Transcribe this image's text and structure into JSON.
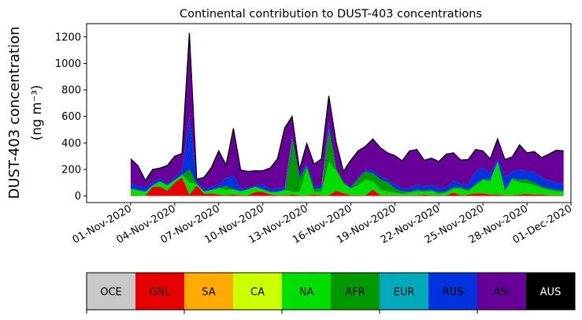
{
  "chart_data": {
    "type": "area",
    "stacked": true,
    "title": "Continental contribution to DUST-403 concentrations",
    "ylabel_line1": "DUST-403 concentration",
    "ylabel_line2": "(ng m⁻³)",
    "ylim": [
      -50,
      1300
    ],
    "yticks": [
      0,
      200,
      400,
      600,
      800,
      1000,
      1200
    ],
    "xlim": [
      "2020-10-29",
      "2020-12-01"
    ],
    "xticks": [
      "01-Nov-2020",
      "04-Nov-2020",
      "07-Nov-2020",
      "10-Nov-2020",
      "13-Nov-2020",
      "16-Nov-2020",
      "19-Nov-2020",
      "22-Nov-2020",
      "25-Nov-2020",
      "28-Nov-2020",
      "01-Dec-2020"
    ],
    "grid": false,
    "x": [
      "2020-11-01",
      "2020-11-01 12:00",
      "2020-11-02",
      "2020-11-02 12:00",
      "2020-11-03",
      "2020-11-03 12:00",
      "2020-11-04",
      "2020-11-04 12:00",
      "2020-11-05",
      "2020-11-05 12:00",
      "2020-11-06",
      "2020-11-06 12:00",
      "2020-11-07",
      "2020-11-07 12:00",
      "2020-11-08",
      "2020-11-08 12:00",
      "2020-11-09",
      "2020-11-09 12:00",
      "2020-11-10",
      "2020-11-10 12:00",
      "2020-11-11",
      "2020-11-11 12:00",
      "2020-11-12",
      "2020-11-12 12:00",
      "2020-11-13",
      "2020-11-13 12:00",
      "2020-11-14",
      "2020-11-14 12:00",
      "2020-11-15",
      "2020-11-15 12:00",
      "2020-11-16",
      "2020-11-16 12:00",
      "2020-11-17",
      "2020-11-17 12:00",
      "2020-11-18",
      "2020-11-18 12:00",
      "2020-11-19",
      "2020-11-19 12:00",
      "2020-11-20",
      "2020-11-20 12:00",
      "2020-11-21",
      "2020-11-21 12:00",
      "2020-11-22",
      "2020-11-22 12:00",
      "2020-11-23",
      "2020-11-23 12:00",
      "2020-11-24",
      "2020-11-24 12:00",
      "2020-11-25",
      "2020-11-25 12:00",
      "2020-11-26",
      "2020-11-26 12:00",
      "2020-11-27",
      "2020-11-27 12:00",
      "2020-11-28",
      "2020-11-28 12:00",
      "2020-11-29",
      "2020-11-29 12:00",
      "2020-11-30",
      "2020-11-30 12:00"
    ],
    "series": [
      {
        "name": "OCE",
        "color": "#c8c8c8",
        "values": [
          0,
          0,
          0,
          0,
          0,
          0,
          0,
          0,
          0,
          0,
          0,
          0,
          0,
          0,
          0,
          0,
          0,
          0,
          0,
          0,
          0,
          0,
          0,
          0,
          0,
          0,
          0,
          0,
          0,
          0,
          0,
          0,
          0,
          0,
          0,
          0,
          0,
          0,
          0,
          0,
          0,
          0,
          0,
          0,
          0,
          0,
          0,
          0,
          0,
          0,
          0,
          0,
          0,
          0,
          0,
          0,
          0,
          0,
          0,
          0
        ]
      },
      {
        "name": "GNL",
        "color": "#e60000",
        "values": [
          5,
          3,
          2,
          70,
          70,
          40,
          100,
          140,
          10,
          80,
          15,
          20,
          10,
          5,
          10,
          5,
          5,
          30,
          30,
          10,
          5,
          5,
          10,
          5,
          5,
          10,
          5,
          5,
          40,
          20,
          5,
          5,
          5,
          50,
          5,
          5,
          5,
          5,
          5,
          5,
          10,
          5,
          5,
          5,
          25,
          5,
          10,
          20,
          20,
          10,
          10,
          5,
          5,
          10,
          15,
          10,
          10,
          5,
          5,
          5
        ]
      },
      {
        "name": "SA",
        "color": "#ffaa00",
        "values": [
          0,
          0,
          0,
          0,
          0,
          0,
          0,
          0,
          0,
          0,
          0,
          0,
          0,
          0,
          0,
          0,
          0,
          0,
          0,
          0,
          0,
          0,
          0,
          0,
          0,
          0,
          0,
          0,
          0,
          0,
          0,
          0,
          0,
          0,
          0,
          0,
          0,
          0,
          0,
          0,
          0,
          0,
          0,
          0,
          0,
          0,
          0,
          0,
          0,
          0,
          0,
          0,
          0,
          0,
          0,
          0,
          0,
          0,
          0,
          0
        ]
      },
      {
        "name": "CA",
        "color": "#ccff00",
        "values": [
          0,
          0,
          0,
          0,
          0,
          0,
          0,
          0,
          0,
          0,
          0,
          0,
          0,
          0,
          0,
          0,
          0,
          0,
          0,
          0,
          0,
          0,
          0,
          0,
          0,
          0,
          0,
          0,
          0,
          0,
          0,
          0,
          0,
          0,
          0,
          0,
          0,
          0,
          0,
          0,
          0,
          0,
          0,
          0,
          0,
          0,
          0,
          0,
          0,
          0,
          0,
          0,
          0,
          0,
          0,
          0,
          0,
          0,
          0,
          0
        ]
      },
      {
        "name": "NA",
        "color": "#00dd00",
        "values": [
          50,
          40,
          30,
          10,
          40,
          40,
          20,
          20,
          90,
          10,
          20,
          25,
          50,
          40,
          40,
          30,
          45,
          40,
          20,
          20,
          25,
          40,
          20,
          25,
          200,
          20,
          25,
          250,
          150,
          70,
          50,
          75,
          120,
          60,
          40,
          30,
          20,
          10,
          20,
          30,
          20,
          30,
          10,
          20,
          30,
          50,
          25,
          60,
          100,
          100,
          250,
          30,
          120,
          90,
          80,
          70,
          50,
          40,
          30,
          25
        ]
      },
      {
        "name": "AFR",
        "color": "#009900",
        "values": [
          0,
          0,
          0,
          0,
          0,
          0,
          0,
          0,
          100,
          0,
          0,
          0,
          0,
          30,
          0,
          0,
          0,
          0,
          0,
          0,
          0,
          0,
          400,
          100,
          20,
          20,
          30,
          250,
          10,
          10,
          5,
          50,
          60,
          60,
          80,
          70,
          30,
          20,
          5,
          10,
          10,
          10,
          10,
          10,
          10,
          10,
          10,
          10,
          10,
          10,
          0,
          10,
          10,
          20,
          30,
          20,
          10,
          10,
          10,
          10
        ]
      },
      {
        "name": "EUR",
        "color": "#00aabb",
        "values": [
          0,
          0,
          0,
          0,
          0,
          0,
          0,
          0,
          0,
          0,
          0,
          0,
          0,
          0,
          0,
          0,
          0,
          0,
          0,
          0,
          0,
          0,
          0,
          0,
          0,
          0,
          0,
          0,
          0,
          0,
          0,
          0,
          0,
          0,
          0,
          0,
          0,
          0,
          0,
          0,
          0,
          0,
          0,
          0,
          0,
          0,
          0,
          0,
          0,
          0,
          0,
          0,
          0,
          0,
          0,
          0,
          0,
          0,
          0,
          0
        ]
      },
      {
        "name": "RUS",
        "color": "#0033dd",
        "values": [
          40,
          30,
          30,
          20,
          20,
          10,
          20,
          30,
          400,
          10,
          20,
          20,
          30,
          60,
          100,
          20,
          10,
          10,
          40,
          20,
          30,
          20,
          20,
          20,
          20,
          20,
          20,
          50,
          5,
          5,
          10,
          10,
          10,
          20,
          20,
          20,
          30,
          20,
          25,
          40,
          30,
          40,
          30,
          30,
          50,
          25,
          40,
          100,
          80,
          50,
          20,
          100,
          50,
          80,
          60,
          80,
          70,
          60,
          60,
          50
        ]
      },
      {
        "name": "ASI",
        "color": "#660099",
        "values": [
          185,
          155,
          55,
          100,
          80,
          140,
          160,
          130,
          630,
          25,
          85,
          150,
          250,
          100,
          360,
          140,
          125,
          110,
          100,
          160,
          220,
          450,
          150,
          50,
          150,
          170,
          200,
          200,
          200,
          80,
          200,
          200,
          180,
          240,
          220,
          200,
          220,
          210,
          285,
          265,
          200,
          200,
          205,
          250,
          210,
          180,
          190,
          160,
          130,
          110,
          150,
          130,
          110,
          185,
          140,
          155,
          150,
          200,
          240,
          250
        ]
      },
      {
        "name": "AUS",
        "color": "#000000",
        "values": [
          0,
          0,
          0,
          0,
          0,
          0,
          0,
          0,
          0,
          0,
          0,
          0,
          0,
          0,
          0,
          0,
          0,
          0,
          0,
          0,
          0,
          0,
          0,
          0,
          0,
          0,
          0,
          0,
          0,
          0,
          0,
          0,
          0,
          0,
          0,
          0,
          0,
          0,
          0,
          0,
          0,
          0,
          0,
          0,
          0,
          0,
          0,
          0,
          0,
          0,
          0,
          0,
          0,
          0,
          0,
          0,
          0,
          0,
          0,
          0
        ]
      }
    ],
    "colorbar": [
      {
        "label": "OCE",
        "color": "#c8c8c8",
        "text_color": "#000000"
      },
      {
        "label": "GNL",
        "color": "#e60000",
        "text_color": "#000000"
      },
      {
        "label": "SA",
        "color": "#ffaa00",
        "text_color": "#000000"
      },
      {
        "label": "CA",
        "color": "#ccff00",
        "text_color": "#000000"
      },
      {
        "label": "NA",
        "color": "#00dd00",
        "text_color": "#000000"
      },
      {
        "label": "AFR",
        "color": "#009900",
        "text_color": "#000000"
      },
      {
        "label": "EUR",
        "color": "#00aabb",
        "text_color": "#000000"
      },
      {
        "label": "RUS",
        "color": "#0033dd",
        "text_color": "#000000"
      },
      {
        "label": "ASI",
        "color": "#660099",
        "text_color": "#000000"
      },
      {
        "label": "AUS",
        "color": "#000000",
        "text_color": "#ffffff"
      }
    ]
  }
}
